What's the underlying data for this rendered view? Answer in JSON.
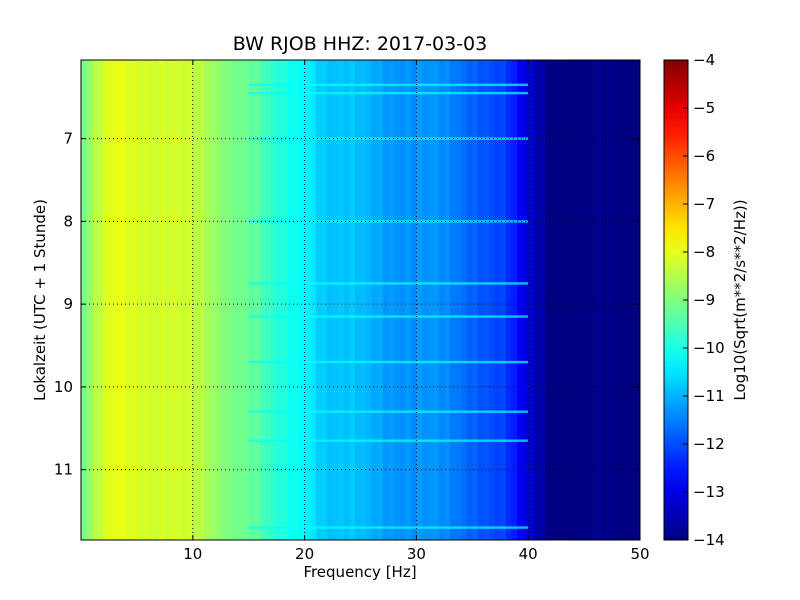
{
  "chart_data": {
    "type": "heatmap",
    "title": "BW RJOB HHZ: 2017-03-03",
    "xlabel": "Frequency [Hz]",
    "ylabel": "Lokalzeit (UTC + 1 Stunde)",
    "xlim": [
      0,
      50
    ],
    "ylim": [
      11.85,
      6.05
    ],
    "y_inverted": true,
    "x_ticks": [
      10,
      20,
      30,
      40,
      50
    ],
    "x_tick_labels": [
      "10",
      "20",
      "30",
      "40",
      "50"
    ],
    "y_ticks": [
      7,
      8,
      9,
      10,
      11
    ],
    "y_tick_labels": [
      "7",
      "8",
      "9",
      "10",
      "11"
    ],
    "grid": true,
    "colormap": "jet",
    "colorbar": {
      "label": "Log10(Sqrt(m**2/s**2/Hz))",
      "range": [
        -14,
        -4
      ],
      "ticks": [
        -4,
        -5,
        -6,
        -7,
        -8,
        -9,
        -10,
        -11,
        -12,
        -13,
        -14
      ],
      "tick_labels": [
        "−4",
        "−5",
        "−6",
        "−7",
        "−8",
        "−9",
        "−10",
        "−11",
        "−12",
        "−13",
        "−14"
      ]
    },
    "spectrum_profile": {
      "frequency_hz": [
        0,
        1,
        2,
        3,
        4,
        5,
        6,
        8,
        10,
        12,
        14,
        15,
        16,
        17,
        18,
        19,
        20,
        21,
        22,
        24,
        26,
        28,
        30,
        32,
        34,
        36,
        38,
        39,
        40,
        41,
        42,
        45,
        50
      ],
      "log10_amplitude": [
        -9.2,
        -8.7,
        -8.3,
        -8.05,
        -8.0,
        -8.0,
        -8.05,
        -8.2,
        -8.4,
        -8.7,
        -9.0,
        -9.2,
        -9.5,
        -9.9,
        -10.0,
        -10.1,
        -10.15,
        -10.5,
        -10.8,
        -10.95,
        -11.05,
        -11.15,
        -11.3,
        -11.45,
        -11.6,
        -11.8,
        -12.2,
        -12.8,
        -13.2,
        -13.6,
        -13.9,
        -14.0,
        -14.0
      ]
    },
    "bright_horizontal_lines_hours": [
      6.35,
      6.45,
      7.0,
      8.0,
      8.75,
      9.15,
      9.7,
      10.3,
      10.65,
      11.7
    ]
  }
}
